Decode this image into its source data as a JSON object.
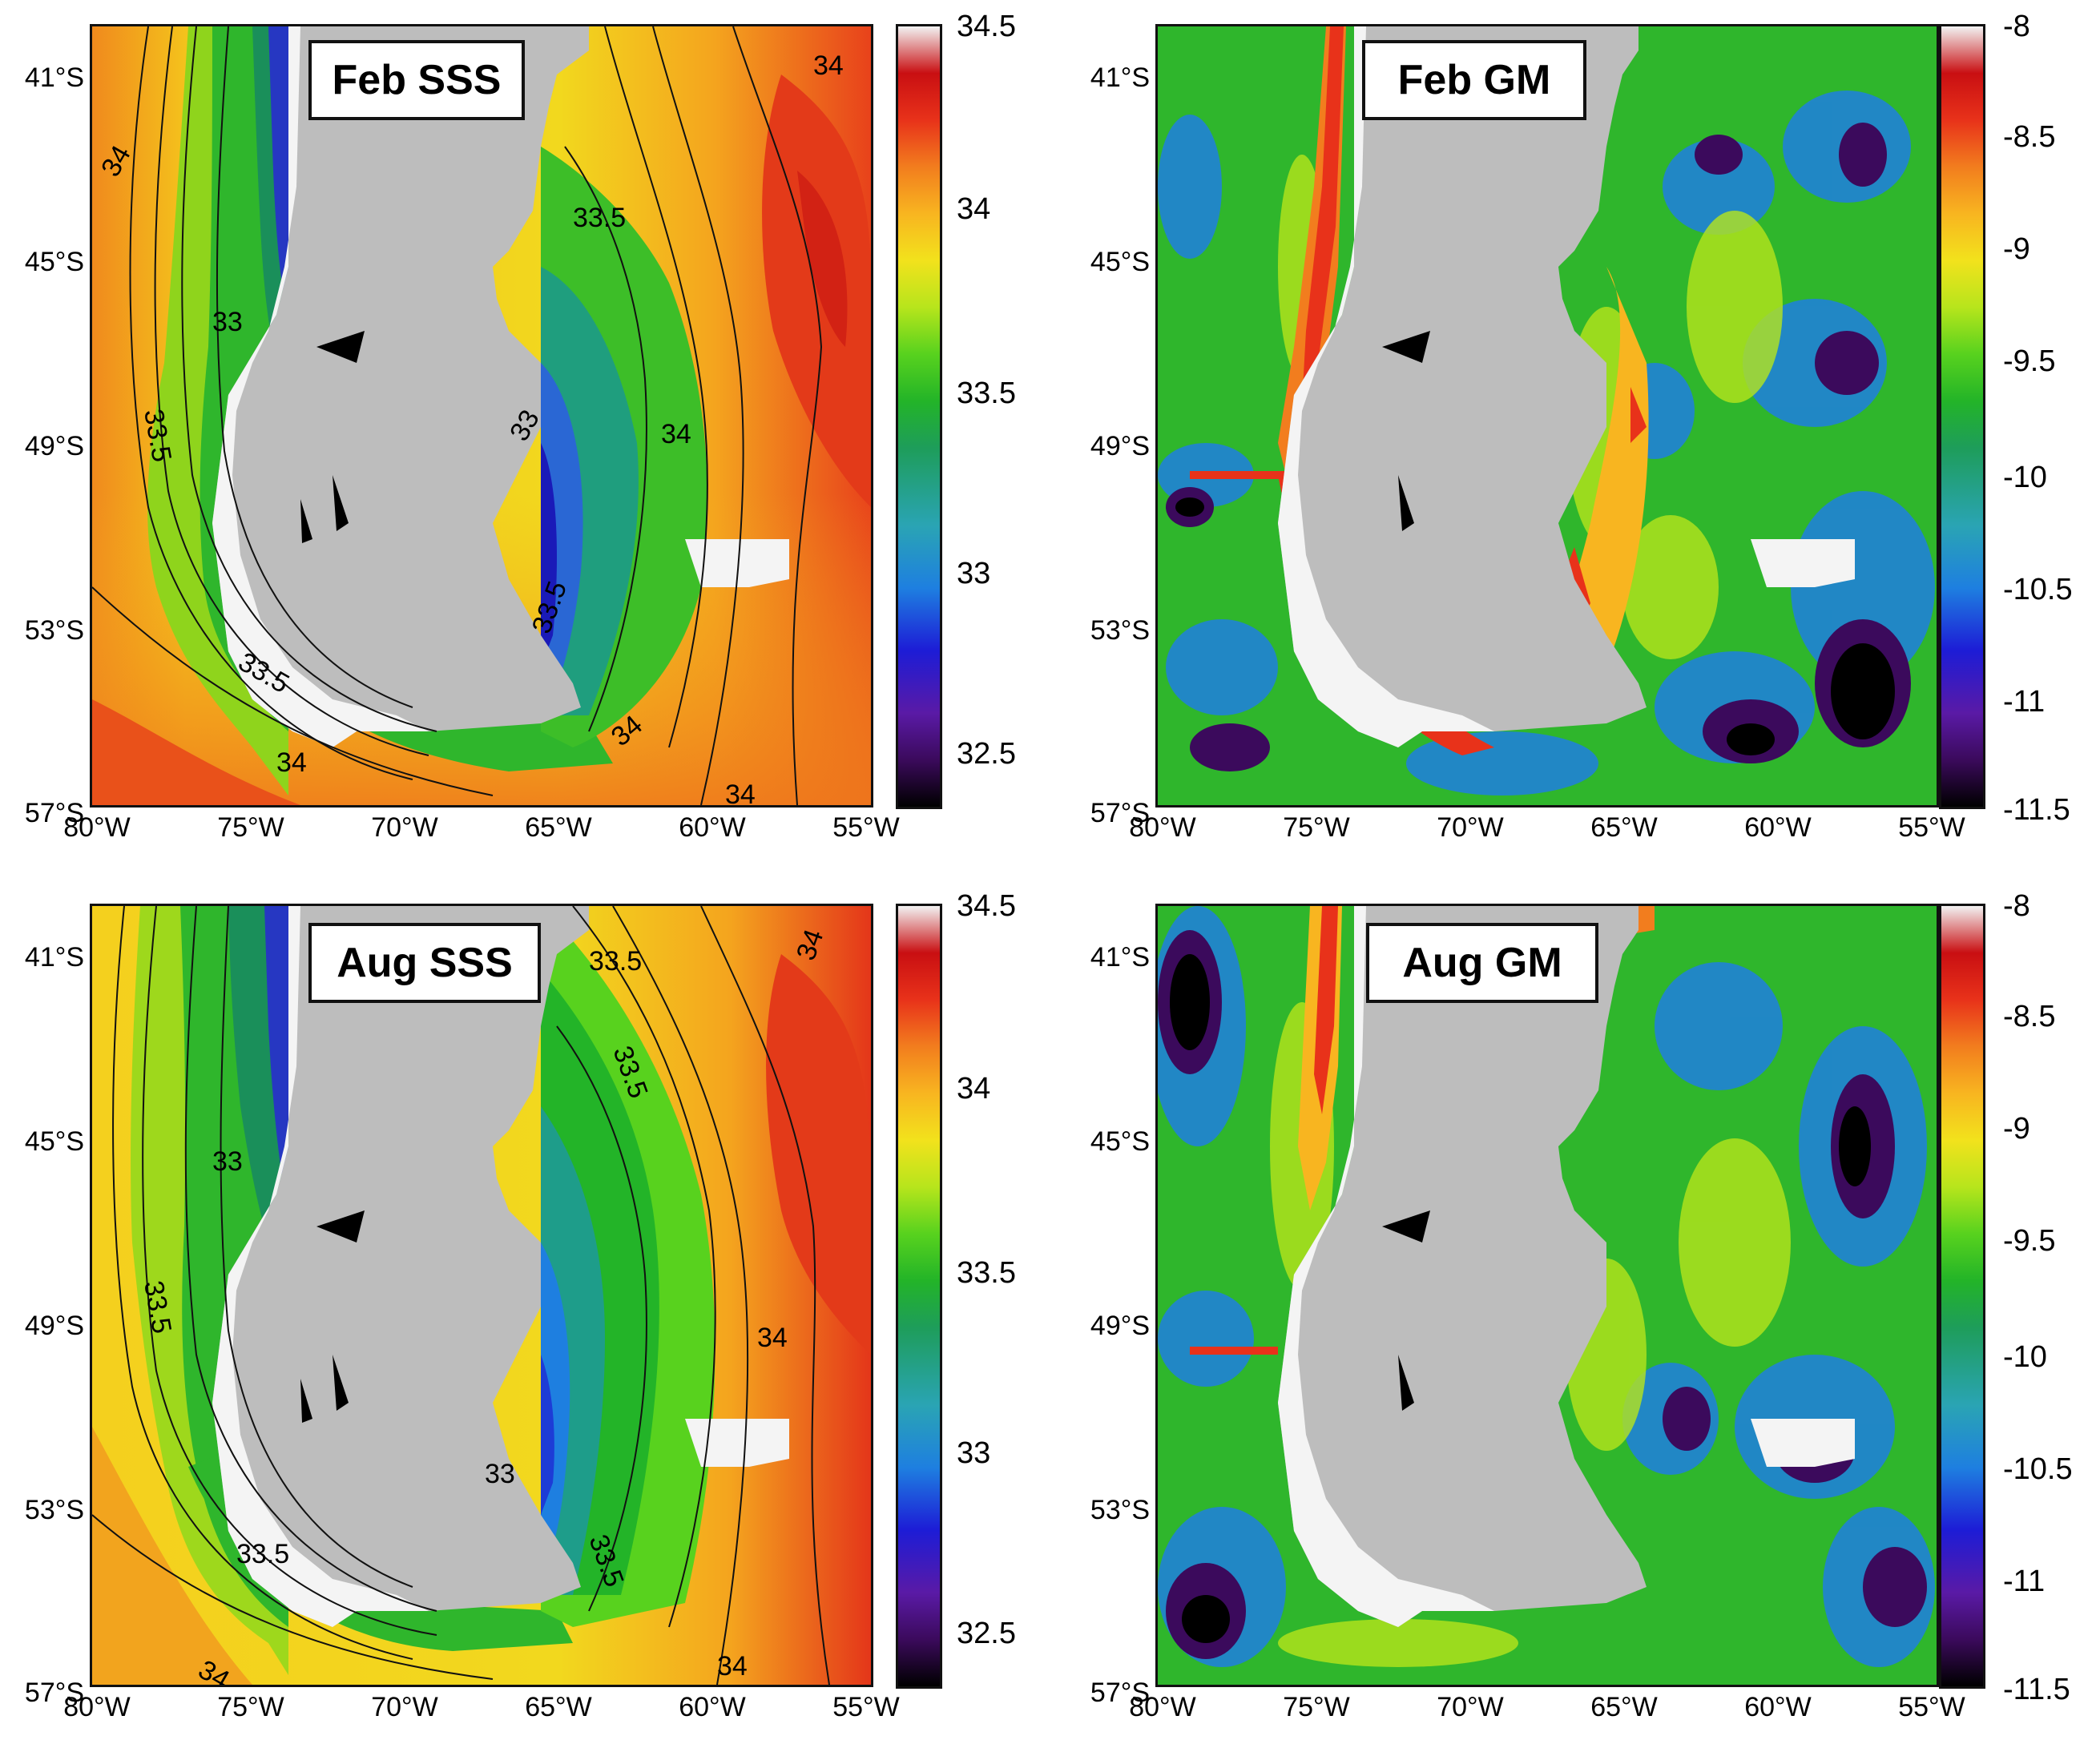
{
  "panels": [
    {
      "id": "feb-sss",
      "title": "Feb SSS",
      "variable": "SSS",
      "season": "Feb",
      "colorbar_ticks": [
        "34.5",
        "34",
        "33.5",
        "33",
        "32.5"
      ],
      "contour_labels": [
        "34",
        "34",
        "33",
        "33.5",
        "33.5",
        "33",
        "33.5",
        "34",
        "34",
        "34",
        "34",
        "33.5"
      ],
      "colormap": [
        "#000000",
        "#3b0a5c",
        "#5a1aa6",
        "#1d1cd6",
        "#1e7fe0",
        "#2aa4b4",
        "#1e9d5a",
        "#23b428",
        "#58d21e",
        "#b7e51c",
        "#f2e21c",
        "#f8b520",
        "#f27d1e",
        "#e8321a",
        "#c90f12",
        "#f2f2f2"
      ]
    },
    {
      "id": "feb-gm",
      "title": "Feb GM",
      "variable": "GM",
      "season": "Feb",
      "colorbar_ticks": [
        "-8",
        "-8.5",
        "-9",
        "-9.5",
        "-10",
        "-10.5",
        "-11",
        "-11.5"
      ],
      "contour_labels": [],
      "colormap": [
        "#000000",
        "#3b0a5c",
        "#5a1aa6",
        "#1d1cd6",
        "#1e7fe0",
        "#2aa4b4",
        "#1e9d5a",
        "#23b428",
        "#58d21e",
        "#b7e51c",
        "#f2e21c",
        "#f8b520",
        "#f27d1e",
        "#e8321a",
        "#c90f12",
        "#f2f2f2"
      ]
    },
    {
      "id": "aug-sss",
      "title": "Aug SSS",
      "variable": "SSS",
      "season": "Aug",
      "colorbar_ticks": [
        "34.5",
        "34",
        "33.5",
        "33",
        "32.5"
      ],
      "contour_labels": [
        "33.5",
        "33.5",
        "34",
        "33",
        "33.5",
        "34",
        "33",
        "33.5",
        "33.5",
        "34",
        "34"
      ],
      "colormap": [
        "#000000",
        "#3b0a5c",
        "#5a1aa6",
        "#1d1cd6",
        "#1e7fe0",
        "#2aa4b4",
        "#1e9d5a",
        "#23b428",
        "#58d21e",
        "#b7e51c",
        "#f2e21c",
        "#f8b520",
        "#f27d1e",
        "#e8321a",
        "#c90f12",
        "#f2f2f2"
      ]
    },
    {
      "id": "aug-gm",
      "title": "Aug GM",
      "variable": "GM",
      "season": "Aug",
      "colorbar_ticks": [
        "-8",
        "-8.5",
        "-9",
        "-9.5",
        "-10",
        "-10.5",
        "-11",
        "-11.5"
      ],
      "contour_labels": [],
      "colormap": [
        "#000000",
        "#3b0a5c",
        "#5a1aa6",
        "#1d1cd6",
        "#1e7fe0",
        "#2aa4b4",
        "#1e9d5a",
        "#23b428",
        "#58d21e",
        "#b7e51c",
        "#f2e21c",
        "#f8b520",
        "#f27d1e",
        "#e8321a",
        "#c90f12",
        "#f2f2f2"
      ]
    }
  ],
  "lat_ticks": [
    "41°S",
    "45°S",
    "49°S",
    "53°S",
    "57°S"
  ],
  "lon_ticks": [
    "80°W",
    "75°W",
    "70°W",
    "65°W",
    "60°W",
    "55°W"
  ],
  "land_color": "#bdbdbd",
  "coast_color": "#ffffff",
  "lake_color": "#000000"
}
